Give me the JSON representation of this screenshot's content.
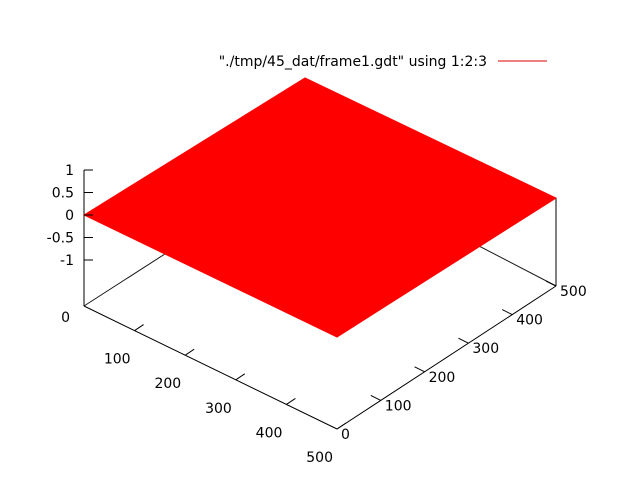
{
  "chart_data": {
    "type": "surface",
    "title": "",
    "legend": {
      "entries": [
        "\"./tmp/45_dat/frame1.gdt\" using 1:2:3"
      ],
      "placement": "top-right",
      "color": "#e00000"
    },
    "surface_color": "#ff0000",
    "x": {
      "ticks": [
        0,
        100,
        200,
        300,
        400,
        500
      ],
      "range": [
        0,
        500
      ],
      "label": ""
    },
    "y": {
      "ticks": [
        0,
        100,
        200,
        300,
        400,
        500
      ],
      "range": [
        0,
        500
      ],
      "label": ""
    },
    "z": {
      "ticks": [
        1,
        0.5,
        0,
        -0.5,
        -1
      ],
      "tick_labels": [
        "1",
        "0.5",
        "0",
        "-0.5",
        "-1"
      ],
      "label": ""
    },
    "z_axis_base_label": "0",
    "surface_value": 0,
    "grid": false
  }
}
